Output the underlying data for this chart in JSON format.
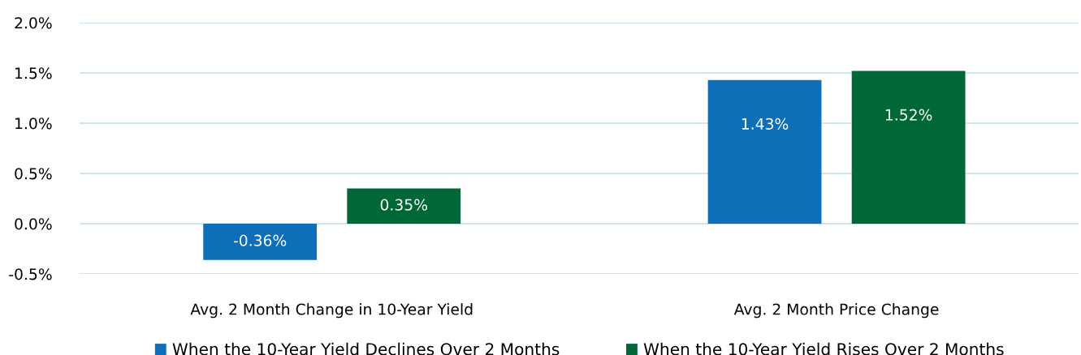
{
  "chart_data": {
    "type": "bar",
    "categories": [
      "Avg. 2 Month Change in 10-Year Yield",
      "Avg. 2 Month Price Change"
    ],
    "series": [
      {
        "name": "When the 10-Year Yield Declines Over 2 Months",
        "color": "#0e6fb8",
        "values": [
          -0.36,
          1.43
        ],
        "value_labels": [
          "-0.36%",
          "1.43%"
        ]
      },
      {
        "name": "When the 10-Year Yield Rises Over 2 Months",
        "color": "#006837",
        "values": [
          0.35,
          1.52
        ],
        "value_labels": [
          "0.35%",
          "1.52%"
        ]
      }
    ],
    "ylim": [
      -0.5,
      2.0
    ],
    "yticks": [
      {
        "value": -0.5,
        "label": "-0.5%"
      },
      {
        "value": 0.0,
        "label": "0.0%"
      },
      {
        "value": 0.5,
        "label": "0.5%"
      },
      {
        "value": 1.0,
        "label": "1.0%"
      },
      {
        "value": 1.5,
        "label": "1.5%"
      },
      {
        "value": 2.0,
        "label": "2.0%"
      }
    ],
    "grid": "y",
    "legend": "bottom"
  }
}
